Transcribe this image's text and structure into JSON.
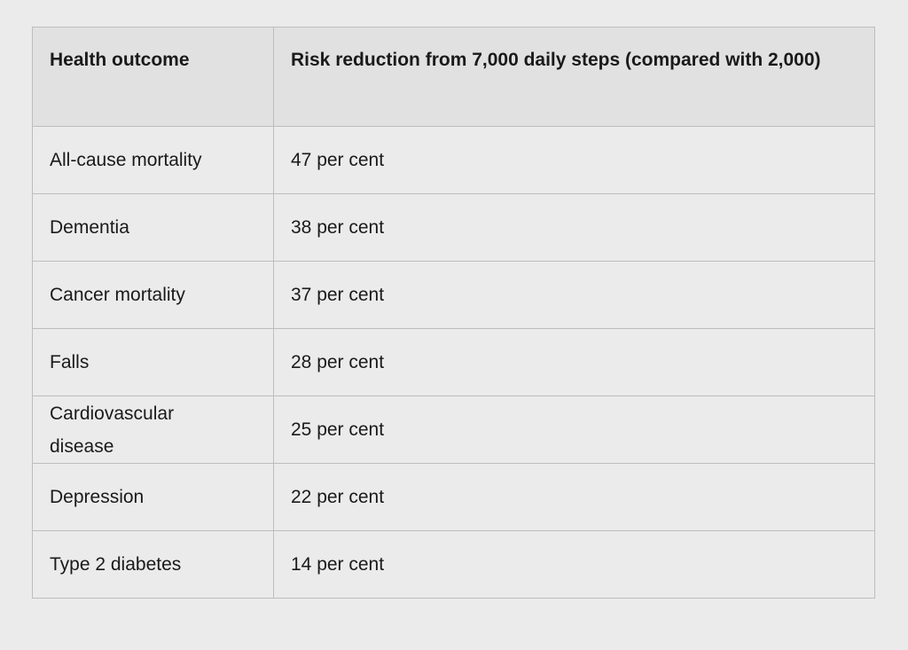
{
  "table": {
    "headers": [
      "Health outcome",
      "Risk reduction from 7,000 daily steps (compared with 2,000)"
    ],
    "rows": [
      [
        "All-cause mortality",
        "47 per cent"
      ],
      [
        "Dementia",
        "38 per cent"
      ],
      [
        "Cancer mortality",
        "37 per cent"
      ],
      [
        "Falls",
        "28 per cent"
      ],
      [
        "Cardiovascular disease",
        "25 per cent"
      ],
      [
        "Depression",
        "22 per cent"
      ],
      [
        "Type 2 diabetes",
        "14 per cent"
      ]
    ]
  }
}
